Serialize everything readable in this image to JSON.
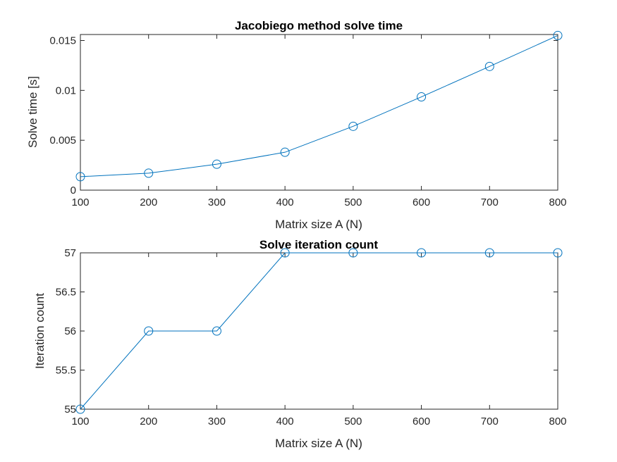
{
  "chart_data": [
    {
      "type": "line",
      "title": "Jacobiego method solve time",
      "xlabel": "Matrix size A (N)",
      "ylabel": "Solve time [s]",
      "xlim": [
        100,
        800
      ],
      "ylim": [
        0,
        0.0156
      ],
      "x_ticks": [
        100,
        200,
        300,
        400,
        500,
        600,
        700,
        800
      ],
      "y_ticks": [
        0,
        0.005,
        0.01,
        0.015
      ],
      "y_tick_labels": [
        "0",
        "0.005",
        "0.01",
        "0.015"
      ],
      "grid": false,
      "marker": "circle",
      "color": "#0072BD",
      "series": [
        {
          "x": [
            100,
            200,
            300,
            400,
            500,
            600,
            700,
            800
          ],
          "values": [
            0.00135,
            0.0017,
            0.0026,
            0.0038,
            0.0064,
            0.00935,
            0.0124,
            0.0155
          ]
        }
      ]
    },
    {
      "type": "line",
      "title": "Solve iteration count",
      "xlabel": "Matrix size A (N)",
      "ylabel": "Iteration count",
      "xlim": [
        100,
        800
      ],
      "ylim": [
        55,
        57
      ],
      "x_ticks": [
        100,
        200,
        300,
        400,
        500,
        600,
        700,
        800
      ],
      "y_ticks": [
        55,
        55.5,
        56,
        56.5,
        57
      ],
      "y_tick_labels": [
        "55",
        "55.5",
        "56",
        "56.5",
        "57"
      ],
      "grid": false,
      "marker": "circle",
      "color": "#0072BD",
      "series": [
        {
          "x": [
            100,
            200,
            300,
            400,
            500,
            600,
            700,
            800
          ],
          "values": [
            55,
            56,
            56,
            57,
            57,
            57,
            57,
            57
          ]
        }
      ]
    }
  ]
}
